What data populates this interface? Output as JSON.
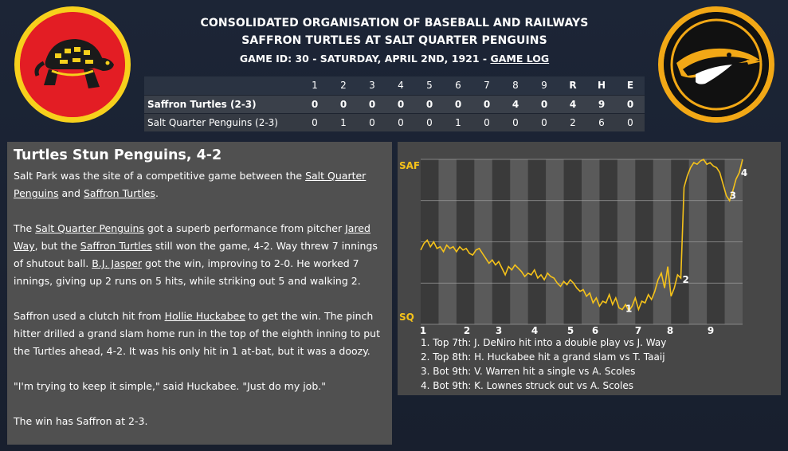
{
  "header": {
    "org": "CONSOLIDATED ORGANISATION OF BASEBALL AND RAILWAYS",
    "matchup": "SAFFRON TURTLES AT SALT QUARTER PENGUINS",
    "game_info_prefix": "GAME ID: 30 - SATURDAY, APRIL 2ND, 1921 - ",
    "game_log": "GAME LOG"
  },
  "logos": {
    "away": "turtle-logo",
    "home": "penguin-logo"
  },
  "linescore": {
    "innings": [
      "1",
      "2",
      "3",
      "4",
      "5",
      "6",
      "7",
      "8",
      "9"
    ],
    "totals": [
      "R",
      "H",
      "E"
    ],
    "rows": [
      {
        "team": "Saffron Turtles (2-3)",
        "scores": [
          "0",
          "0",
          "0",
          "0",
          "0",
          "0",
          "0",
          "4",
          "0"
        ],
        "tot": [
          "4",
          "9",
          "0"
        ]
      },
      {
        "team": "Salt Quarter Penguins (2-3)",
        "scores": [
          "0",
          "1",
          "0",
          "0",
          "0",
          "1",
          "0",
          "0",
          "0"
        ],
        "tot": [
          "2",
          "6",
          "0"
        ]
      }
    ]
  },
  "article": {
    "title": "Turtles Stun Penguins, 4-2",
    "p1": {
      "a": "Salt Park was the site of a competitive game between the ",
      "l1": "Salt Quarter Penguins",
      "b": " and ",
      "l2": "Saffron Turtles",
      "c": "."
    },
    "p2": {
      "a": "The ",
      "l1": "Salt Quarter Penguins",
      "b": " got a superb performance from pitcher ",
      "l2": "Jared Way",
      "c": ", but the ",
      "l3": "Saffron Turtles",
      "d": " still won the game, 4-2. Way threw 7 innings of shutout ball. ",
      "l4": "B.J. Jasper",
      "e": " got the win, improving to 2-0. He worked 7 innings, giving up 2 runs on 5 hits, while striking out 5 and walking 2."
    },
    "p3": {
      "a": "Saffron used a clutch hit from ",
      "l1": "Hollie Huckabee",
      "b": " to get the win. The pinch hitter drilled a grand slam home run in the top of the eighth inning to put the Turtles ahead, 4-2. It was his only hit in 1 at-bat, but it was a doozy."
    },
    "p4": "\"I'm trying to keep it simple,\" said Huckabee. \"Just do my job.\"",
    "p5": "The win has Saffron at 2-3."
  },
  "chart_data": {
    "type": "line",
    "top_label": "SAF",
    "bottom_label": "SQ",
    "x_ticks": [
      "1",
      "2",
      "3",
      "4",
      "5",
      "6",
      "7",
      "8",
      "9"
    ],
    "ylim": [
      0,
      100
    ],
    "colors": {
      "line": "#f5c21a",
      "labels": "#f5c21a"
    },
    "series": [
      {
        "values": [
          45,
          49,
          51,
          47,
          50,
          46,
          47,
          44,
          48,
          46,
          47,
          44,
          47,
          45,
          46,
          43,
          42,
          45,
          46,
          43,
          40,
          37,
          39,
          36,
          38,
          34,
          30,
          35,
          33,
          36,
          34,
          32,
          29,
          31,
          30,
          33,
          28,
          30,
          27,
          31,
          29,
          28,
          25,
          23,
          26,
          24,
          27,
          25,
          22,
          20,
          21,
          17,
          19,
          13,
          16,
          11,
          14,
          13,
          18,
          12,
          16,
          10,
          9,
          12,
          8,
          11,
          16,
          9,
          14,
          13,
          18,
          15,
          20,
          27,
          31,
          22,
          35,
          17,
          22,
          30,
          28,
          83,
          90,
          95,
          98,
          97,
          99,
          100,
          97,
          98,
          96,
          95,
          92,
          85,
          78,
          75,
          81,
          88,
          92,
          100
        ]
      }
    ],
    "annotations": [
      {
        "label": "1",
        "text": "Top 7th: J. DeNiro hit into a double play vs J. Way"
      },
      {
        "label": "2",
        "text": "Top 8th: H. Huckabee hit a grand slam vs T. Taaij"
      },
      {
        "label": "3",
        "text": "Bot 9th: V. Warren hit a single vs A. Scoles"
      },
      {
        "label": "4",
        "text": "Bot 9th: K. Lownes struck out vs A. Scoles"
      }
    ],
    "notes": [
      "1. Top 7th: J. DeNiro hit into a double play vs J. Way",
      "2. Top 8th: H. Huckabee hit a grand slam vs T. Taaij",
      "3. Bot 9th: V. Warren hit a single vs A. Scoles",
      "4. Bot 9th: K. Lownes struck out vs A. Scoles"
    ]
  }
}
